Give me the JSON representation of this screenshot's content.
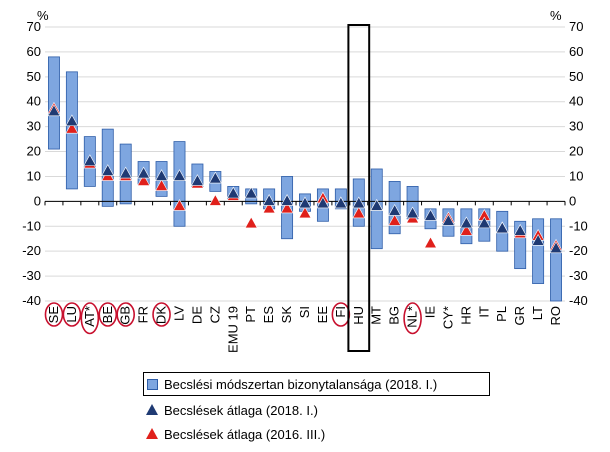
{
  "chart_data": {
    "type": "box-range-markers",
    "y_unit_left": "%",
    "y_unit_right": "%",
    "ylim": [
      -40,
      70
    ],
    "yticks": [
      70,
      60,
      50,
      40,
      30,
      20,
      10,
      0,
      -10,
      -20,
      -30,
      -40
    ],
    "categories": [
      "SE",
      "LU",
      "AT*",
      "BE",
      "GB",
      "FR",
      "DK",
      "LV",
      "DE",
      "CZ",
      "EMU 19",
      "PT",
      "ES",
      "SK",
      "SI",
      "EE",
      "FI",
      "HU",
      "MT",
      "BG",
      "NL*",
      "IE",
      "CY*",
      "HR",
      "IT",
      "PL",
      "GR",
      "LT",
      "RO"
    ],
    "circled": [
      "SE",
      "LU",
      "AT*",
      "BE",
      "GB",
      "DK",
      "FI",
      "NL*"
    ],
    "highlighted": "HU",
    "series": [
      {
        "name": "Becslési módszertan bizonytalansága (2018. I.)",
        "kind": "range",
        "low": [
          21,
          5,
          6,
          -2,
          -1,
          7,
          2,
          -10,
          6,
          4,
          1,
          -1,
          -3,
          -15,
          -4,
          -8,
          -3,
          -10,
          -19,
          -13,
          -7,
          -11,
          -14,
          -17,
          -16,
          -20,
          -27,
          -33,
          -42
        ],
        "high": [
          58,
          52,
          26,
          29,
          23,
          16,
          16,
          24,
          15,
          12,
          6,
          5,
          5,
          10,
          3,
          5,
          5,
          9,
          13,
          8,
          6,
          -3,
          -3,
          -3,
          -3,
          -4,
          -8,
          -7,
          -7
        ]
      },
      {
        "name": "Becslések átlaga (2018. I.)",
        "kind": "marker",
        "values": [
          36,
          32,
          16,
          12,
          11,
          11,
          10,
          10,
          8,
          9,
          3,
          3,
          0,
          0,
          -1,
          -1,
          -1,
          -1,
          -2,
          -4,
          -5,
          -6,
          -8,
          -9,
          -9,
          -11,
          -12,
          -16,
          -19
        ]
      },
      {
        "name": "Becslések átlaga (2016. III.)",
        "kind": "marker",
        "values": [
          37,
          29,
          15,
          10,
          10,
          8,
          6,
          -2,
          7,
          0,
          2,
          -9,
          -3,
          -3,
          -5,
          1,
          -1,
          -5,
          -2,
          -8,
          -7,
          -17,
          -7,
          -12,
          -6,
          -11,
          -13,
          -14,
          -18
        ]
      }
    ],
    "colors": {
      "range_fill": "#7ea6e0",
      "range_stroke": "#2e5da8",
      "marker_2018": "#1f3a73",
      "marker_2016": "#e0201b",
      "circle": "#c8102e"
    }
  }
}
